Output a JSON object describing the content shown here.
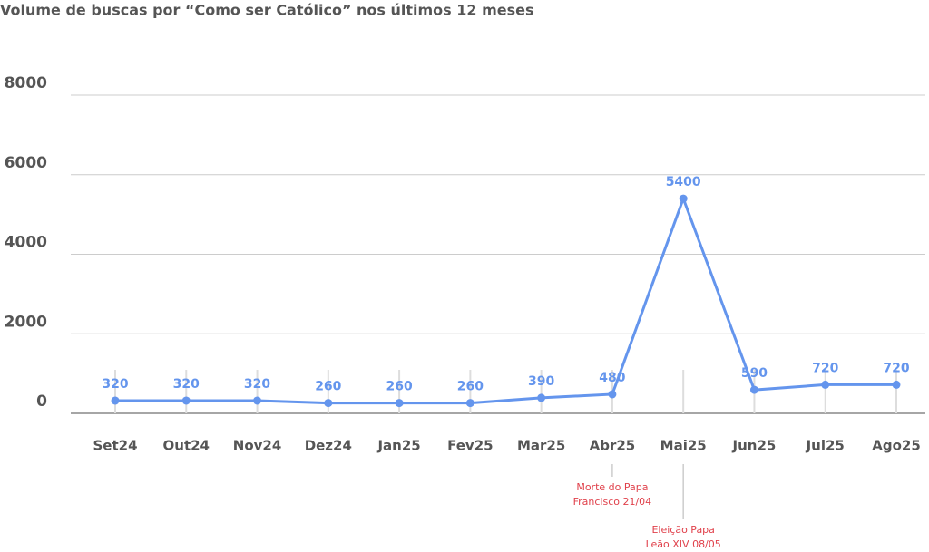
{
  "chart_data": {
    "type": "line",
    "title": "Volume de buscas por “Como ser Católico” nos últimos 12 meses",
    "categories": [
      "Set24",
      "Out24",
      "Nov24",
      "Dez24",
      "Jan25",
      "Fev25",
      "Mar25",
      "Abr25",
      "Mai25",
      "Jun25",
      "Jul25",
      "Ago25"
    ],
    "series": [
      {
        "name": "Volume de buscas",
        "color": "#6495ed",
        "values": [
          320,
          320,
          320,
          260,
          260,
          260,
          390,
          480,
          5400,
          590,
          720,
          720
        ]
      }
    ],
    "ylim": [
      0,
      8000
    ],
    "yticks": [
      0,
      2000,
      4000,
      6000,
      8000
    ],
    "grid": true,
    "annotations": [
      {
        "category": "Abr25",
        "text": [
          "Morte do Papa",
          "Francisco 21/04"
        ],
        "color": "#e0414b"
      },
      {
        "category": "Mai25",
        "text": [
          "Eleição Papa",
          "Leão XIV 08/05"
        ],
        "color": "#e0414b"
      }
    ]
  }
}
